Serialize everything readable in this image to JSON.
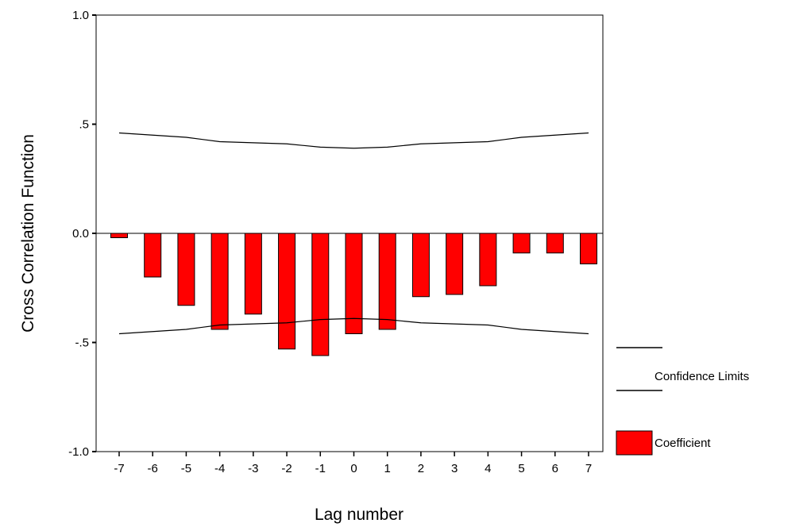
{
  "chart_data": {
    "type": "bar",
    "xlabel": "Lag number",
    "ylabel": "Cross Correlation Function",
    "ylim": [
      -1.0,
      1.0
    ],
    "yticks": [
      {
        "value": 1.0,
        "label": "1.0"
      },
      {
        "value": 0.5,
        "label": ".5"
      },
      {
        "value": 0.0,
        "label": "0.0"
      },
      {
        "value": -0.5,
        "label": "-.5"
      },
      {
        "value": -1.0,
        "label": "-1.0"
      }
    ],
    "categories": [
      "-7",
      "-6",
      "-5",
      "-4",
      "-3",
      "-2",
      "-1",
      "0",
      "1",
      "2",
      "3",
      "4",
      "5",
      "6",
      "7"
    ],
    "series": [
      {
        "name": "Coefficient",
        "color": "#ff0000",
        "values": [
          -0.02,
          -0.2,
          -0.33,
          -0.44,
          -0.37,
          -0.53,
          -0.56,
          -0.46,
          -0.44,
          -0.29,
          -0.28,
          -0.24,
          -0.09,
          -0.09,
          -0.14
        ]
      }
    ],
    "confidence_limits": {
      "name": "Confidence Limits",
      "upper": [
        0.46,
        0.45,
        0.44,
        0.42,
        0.415,
        0.41,
        0.395,
        0.39,
        0.395,
        0.41,
        0.415,
        0.42,
        0.44,
        0.45,
        0.46
      ],
      "lower": [
        -0.46,
        -0.45,
        -0.44,
        -0.42,
        -0.415,
        -0.41,
        -0.395,
        -0.39,
        -0.395,
        -0.41,
        -0.415,
        -0.42,
        -0.44,
        -0.45,
        -0.46
      ]
    },
    "legend_position": "right",
    "grid": false
  }
}
